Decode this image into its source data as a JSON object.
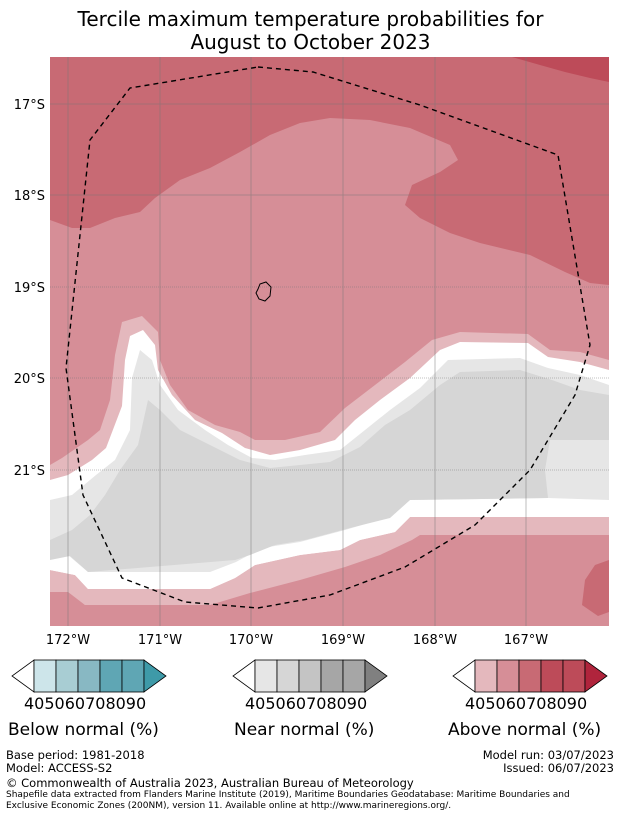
{
  "title": {
    "line1": "Tercile maximum temperature probabilities for",
    "line2": "August to October 2023"
  },
  "map": {
    "lat_labels": [
      "17°S",
      "18°S",
      "19°S",
      "20°S",
      "21°S"
    ],
    "lon_labels": [
      "172°W",
      "171°W",
      "170°W",
      "169°W",
      "168°W",
      "167°W"
    ],
    "region": "Niue",
    "boundary": "dashed EEZ boundary"
  },
  "colors": {
    "below": [
      "#ffffff",
      "#cde5ea",
      "#a8cdd3",
      "#88b8c3",
      "#5fa6b4",
      "#3e9aa8"
    ],
    "near": [
      "#ffffff",
      "#e6e6e6",
      "#d6d6d6",
      "#c4c4c4",
      "#a6a6a6",
      "#808080"
    ],
    "above": [
      "#ffffff",
      "#e4b8bd",
      "#d68e97",
      "#c86a74",
      "#bd4b59",
      "#b0243c"
    ]
  },
  "legends": {
    "below": {
      "label": "Below normal (%)",
      "ticks": [
        "40",
        "50",
        "60",
        "70",
        "80",
        "90"
      ]
    },
    "near": {
      "label": "Near normal (%)",
      "ticks": [
        "40",
        "50",
        "60",
        "70",
        "80",
        "90"
      ]
    },
    "above": {
      "label": "Above normal (%)",
      "ticks": [
        "40",
        "50",
        "60",
        "70",
        "80",
        "90"
      ]
    }
  },
  "meta": {
    "base_period": "Base period: 1981-2018",
    "model": "Model: ACCESS-S2",
    "model_run": "Model run: 03/07/2023",
    "issued": "Issued: 06/07/2023",
    "copyright": "© Commonwealth of Australia 2023, Australian Bureau of Meteorology",
    "shapefile1": "Shapefile data extracted from Flanders Marine Institute (2019), Maritime Boundaries Geodatabase: Maritime Boundaries and",
    "shapefile2": "Exclusive Economic Zones (200NM), version 11. Available online at http://www.marineregions.org/."
  }
}
